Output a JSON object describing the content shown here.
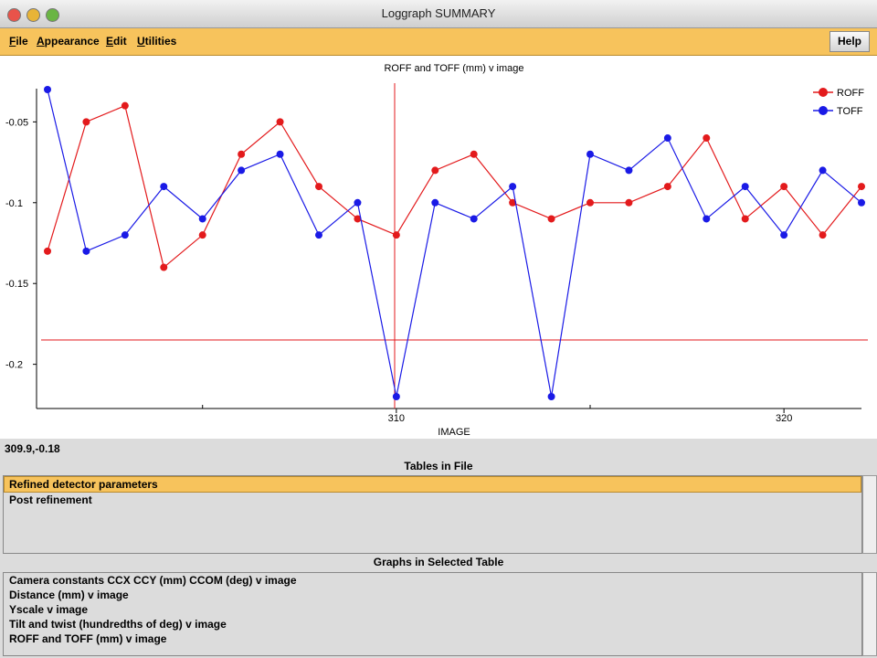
{
  "window": {
    "title": "Loggraph SUMMARY"
  },
  "menu": [
    "File",
    "Appearance",
    "Edit",
    "Utilities"
  ],
  "help": "Help",
  "chart_data": {
    "type": "line",
    "title": "ROFF and TOFF (mm) v image",
    "x_label": "IMAGE",
    "x": [
      301,
      302,
      303,
      304,
      305,
      306,
      307,
      308,
      309,
      310,
      311,
      312,
      313,
      314,
      315,
      316,
      317,
      318,
      319,
      320,
      321,
      322
    ],
    "series": [
      {
        "name": "ROFF",
        "color": "#e31a1c",
        "values": [
          -0.13,
          -0.05,
          -0.04,
          -0.14,
          -0.12,
          -0.07,
          -0.05,
          -0.09,
          -0.11,
          -0.12,
          -0.08,
          -0.07,
          -0.1,
          -0.11,
          -0.1,
          -0.1,
          -0.09,
          -0.06,
          -0.11,
          -0.09,
          -0.12,
          -0.09
        ]
      },
      {
        "name": "TOFF",
        "color": "#1a1ae6",
        "values": [
          -0.03,
          -0.13,
          -0.12,
          -0.09,
          -0.11,
          -0.08,
          -0.07,
          -0.12,
          -0.1,
          -0.22,
          -0.1,
          -0.11,
          -0.09,
          -0.22,
          -0.07,
          -0.08,
          -0.06,
          -0.11,
          -0.09,
          -0.12,
          -0.08,
          -0.1
        ]
      }
    ],
    "xlim": [
      301,
      322
    ],
    "xticks": [
      310,
      320
    ],
    "xticks_minor": [
      305,
      315
    ],
    "ylim": [
      -0.22,
      -0.03
    ],
    "yticks": [
      -0.05,
      -0.1,
      -0.15,
      -0.2
    ],
    "legend": "top-right"
  },
  "status": "309.9,-0.18",
  "tables": {
    "heading": "Tables in File",
    "items": [
      "Refined detector parameters",
      "Post refinement"
    ],
    "selected": 0
  },
  "graphs": {
    "heading": "Graphs in Selected Table",
    "items": [
      "Camera constants CCX CCY (mm) CCOM (deg) v image",
      "Distance (mm) v image",
      "Yscale v image",
      "Tilt and twist (hundredths of deg) v image",
      "ROFF and TOFF (mm) v image"
    ]
  }
}
